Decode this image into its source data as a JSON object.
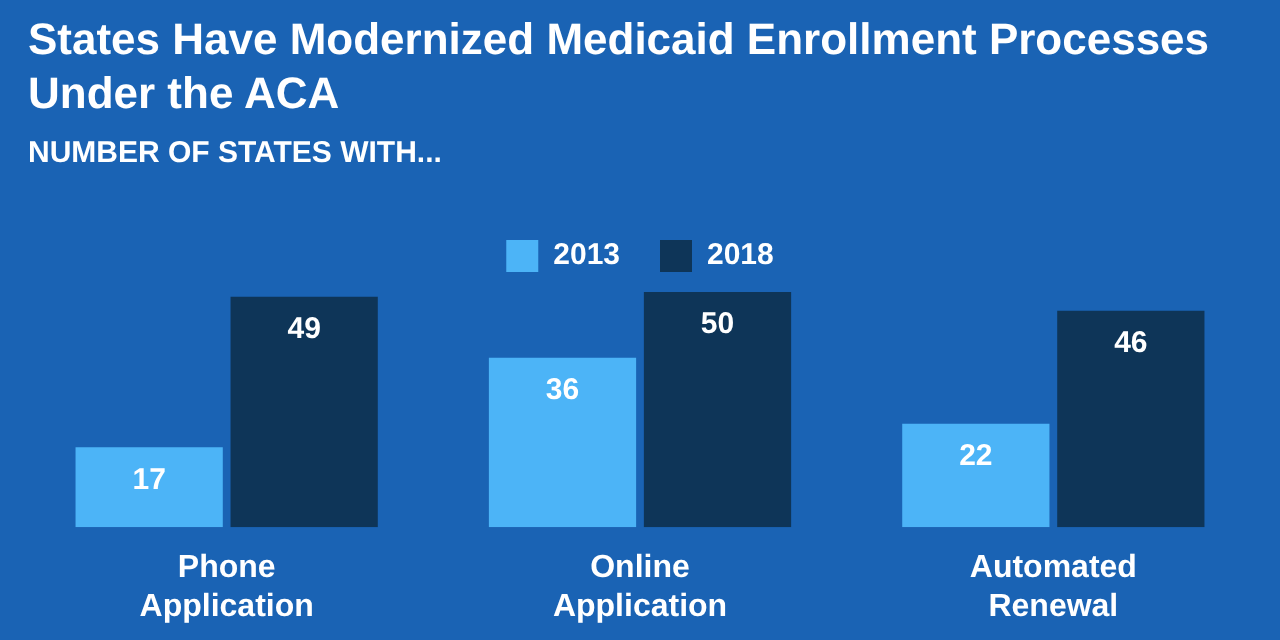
{
  "chart_data": {
    "type": "bar",
    "title": "States Have Modernized Medicaid Enrollment Processes Under the ACA",
    "subtitle": "NUMBER OF STATES WITH...",
    "categories": [
      "Phone Application",
      "Online Application",
      "Automated Renewal"
    ],
    "series": [
      {
        "name": "2013",
        "color": "#4cb4f7",
        "values": [
          17,
          36,
          22
        ]
      },
      {
        "name": "2018",
        "color": "#0e3558",
        "values": [
          49,
          50,
          46
        ]
      }
    ],
    "data_labels": true,
    "legend": "top"
  }
}
